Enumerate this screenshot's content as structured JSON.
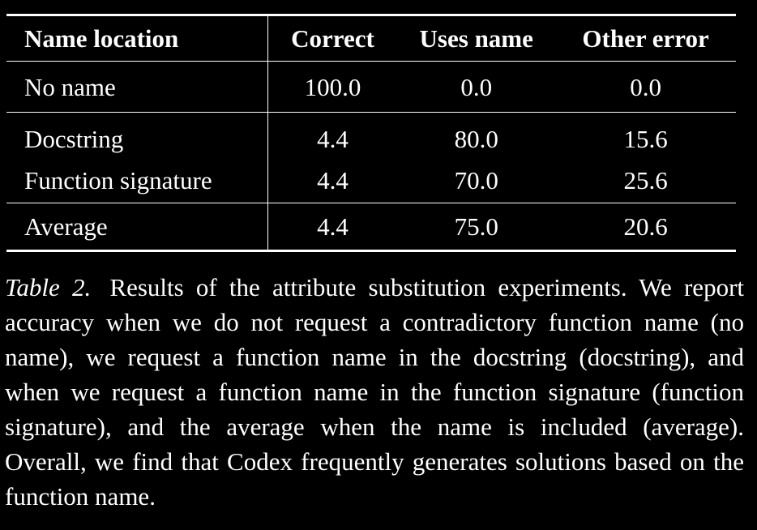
{
  "table": {
    "headers": [
      "Name location",
      "Correct",
      "Uses name",
      "Other error"
    ],
    "rows": [
      {
        "label": "No name",
        "correct": "100.0",
        "uses_name": "0.0",
        "other_error": "0.0"
      },
      {
        "label": "Docstring",
        "correct": "4.4",
        "uses_name": "80.0",
        "other_error": "15.6"
      },
      {
        "label": "Function signature",
        "correct": "4.4",
        "uses_name": "70.0",
        "other_error": "25.6"
      },
      {
        "label": "Average",
        "correct": "4.4",
        "uses_name": "75.0",
        "other_error": "20.6"
      }
    ]
  },
  "caption": {
    "label": "Table 2.",
    "text": "Results of the attribute substitution experiments. We report accuracy when we do not request a contradictory function name (no name), we request a function name in the docstring (docstring), and when we request a function name in the function signature (function signature), and the average when the name is included (average). Overall, we find that Codex frequently generates solutions based on the function name."
  }
}
